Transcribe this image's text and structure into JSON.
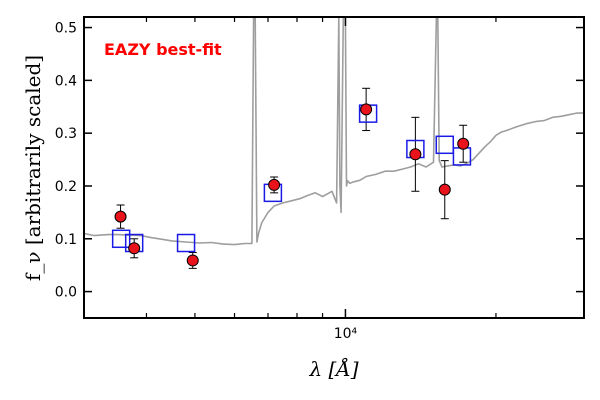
{
  "chart_data": {
    "type": "scatter",
    "title": "",
    "xlabel": "λ [Å]",
    "ylabel": "f_ν [arbitrarily scaled]",
    "xscale": "log",
    "xlim": [
      3000,
      30000
    ],
    "ylim": [
      -0.05,
      0.52
    ],
    "yticks": [
      0.0,
      0.1,
      0.2,
      0.3,
      0.4,
      0.5
    ],
    "ytick_labels": [
      "0.0",
      "0.1",
      "0.2",
      "0.3",
      "0.4",
      "0.5"
    ],
    "xticks_major": [
      10000
    ],
    "xtick_labels": [
      "10⁴"
    ],
    "xticks_minor": [
      4000,
      5000,
      6000,
      7000,
      8000,
      9000,
      20000
    ],
    "annotation": {
      "text": "EAZY best-fit",
      "color": "#ff0000"
    },
    "grid": false,
    "colors": {
      "sed": "#9e9e9e",
      "observed": "#e8131b",
      "model": "#1a1ae6"
    },
    "series": [
      {
        "kind": "sed_line",
        "x": [
          3000,
          3150,
          3350,
          3500,
          3700,
          3900,
          4100,
          4300,
          4500,
          4800,
          5100,
          5400,
          5700,
          6000,
          6300,
          6500,
          6550,
          6600,
          6650,
          6700,
          6800,
          7000,
          7200,
          7500,
          7800,
          8100,
          8400,
          8700,
          9000,
          9200,
          9400,
          9600,
          9700,
          9750,
          9800,
          9900,
          10000,
          10050,
          10100,
          10200,
          10400,
          10700,
          11000,
          11500,
          12000,
          12500,
          13000,
          13500,
          14000,
          14500,
          15000,
          15200,
          15300,
          15400,
          15600,
          16000,
          16500,
          17000,
          17500,
          18000,
          18500,
          19000,
          19500,
          20000,
          20500,
          21000,
          22000,
          23000,
          24000,
          25000,
          26000,
          27000,
          28000,
          29000,
          30000
        ],
        "y": [
          0.11,
          0.106,
          0.108,
          0.108,
          0.107,
          0.106,
          0.102,
          0.099,
          0.096,
          0.094,
          0.092,
          0.093,
          0.09,
          0.089,
          0.091,
          0.091,
          0.52,
          0.52,
          0.094,
          0.11,
          0.13,
          0.15,
          0.162,
          0.168,
          0.172,
          0.176,
          0.182,
          0.187,
          0.18,
          0.185,
          0.19,
          0.168,
          0.52,
          0.2,
          0.15,
          0.52,
          0.52,
          0.2,
          0.21,
          0.205,
          0.208,
          0.211,
          0.218,
          0.222,
          0.228,
          0.228,
          0.232,
          0.236,
          0.242,
          0.236,
          0.245,
          0.52,
          0.52,
          0.248,
          0.236,
          0.238,
          0.24,
          0.238,
          0.243,
          0.25,
          0.262,
          0.274,
          0.284,
          0.296,
          0.302,
          0.305,
          0.312,
          0.318,
          0.322,
          0.324,
          0.33,
          0.332,
          0.335,
          0.338,
          0.338
        ]
      },
      {
        "kind": "observed",
        "x": [
          3550,
          3780,
          4950,
          7200,
          11000,
          13800,
          15800,
          17200
        ],
        "y": [
          0.142,
          0.082,
          0.059,
          0.202,
          0.345,
          0.26,
          0.193,
          0.28
        ],
        "yerr": [
          0.022,
          0.018,
          0.015,
          0.015,
          0.04,
          0.07,
          0.055,
          0.035
        ]
      },
      {
        "kind": "model",
        "x": [
          3560,
          3780,
          4800,
          7160,
          11100,
          13800,
          15800,
          17100
        ],
        "y": [
          0.1,
          0.092,
          0.092,
          0.187,
          0.337,
          0.27,
          0.278,
          0.256
        ]
      }
    ]
  }
}
